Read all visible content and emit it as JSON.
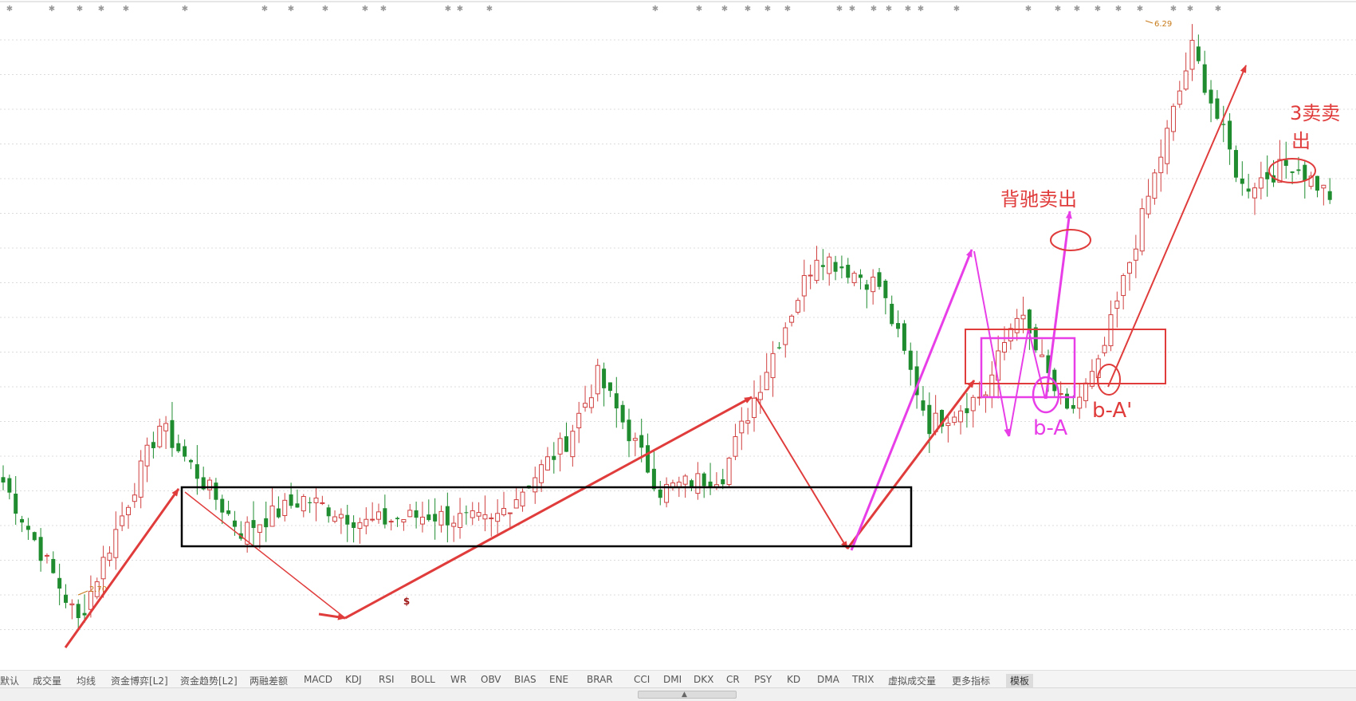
{
  "chart_data": {
    "type": "candlestick",
    "title": "",
    "colors": {
      "up": "#d04040",
      "down": "#1e8c2f",
      "annotation_red": "#e03c3c",
      "annotation_magenta": "#e83ee8",
      "box_black": "#000000",
      "extreme_label": "#c77a1a",
      "grid": "#dcdcdc",
      "star_marker": "#999999"
    },
    "price_range": [
      2.6,
      6.4
    ],
    "low_label": "2.70",
    "high_label": "6.29",
    "bottom_marker": "$",
    "anchors": [
      [
        0,
        3.6
      ],
      [
        12,
        2.75
      ],
      [
        25,
        3.95
      ],
      [
        38,
        3.3
      ],
      [
        48,
        3.5
      ],
      [
        58,
        3.35
      ],
      [
        68,
        3.4
      ],
      [
        78,
        3.35
      ],
      [
        90,
        3.85
      ],
      [
        95,
        4.25
      ],
      [
        105,
        3.55
      ],
      [
        115,
        3.65
      ],
      [
        122,
        4.3
      ],
      [
        130,
        5.0
      ],
      [
        140,
        4.8
      ],
      [
        148,
        3.95
      ],
      [
        157,
        4.15
      ],
      [
        162,
        4.65
      ],
      [
        170,
        4.0
      ],
      [
        175,
        4.3
      ],
      [
        190,
        6.25
      ],
      [
        198,
        5.4
      ],
      [
        206,
        5.55
      ],
      [
        212,
        5.35
      ]
    ],
    "annotations": [
      {
        "text": "背驰卖出",
        "color": "#e03c3c"
      },
      {
        "text": "3卖卖",
        "color": "#e03c3c"
      },
      {
        "text": "出",
        "color": "#e03c3c"
      },
      {
        "text": "b-A",
        "color": "#e83ee8"
      },
      {
        "text": "b-A'",
        "color": "#e03c3c"
      }
    ]
  },
  "tabs": [
    {
      "label": "默认"
    },
    {
      "label": "成交量"
    },
    {
      "label": "均线"
    },
    {
      "label": "资金博弈[L2]"
    },
    {
      "label": "资金趋势[L2]"
    },
    {
      "label": "两融差额"
    },
    {
      "label": "MACD"
    },
    {
      "label": "KDJ"
    },
    {
      "label": "RSI"
    },
    {
      "label": "BOLL"
    },
    {
      "label": "WR"
    },
    {
      "label": "OBV"
    },
    {
      "label": "BIAS"
    },
    {
      "label": "ENE"
    },
    {
      "label": "BRAR"
    },
    {
      "label": "CCI"
    },
    {
      "label": "DMI"
    },
    {
      "label": "DKX"
    },
    {
      "label": "CR"
    },
    {
      "label": "PSY"
    },
    {
      "label": "KD"
    },
    {
      "label": "DMA"
    },
    {
      "label": "TRIX"
    },
    {
      "label": "虚拟成交量"
    },
    {
      "label": "更多指标"
    },
    {
      "label": "模板",
      "active": true
    }
  ],
  "scroll_grip": "▲"
}
